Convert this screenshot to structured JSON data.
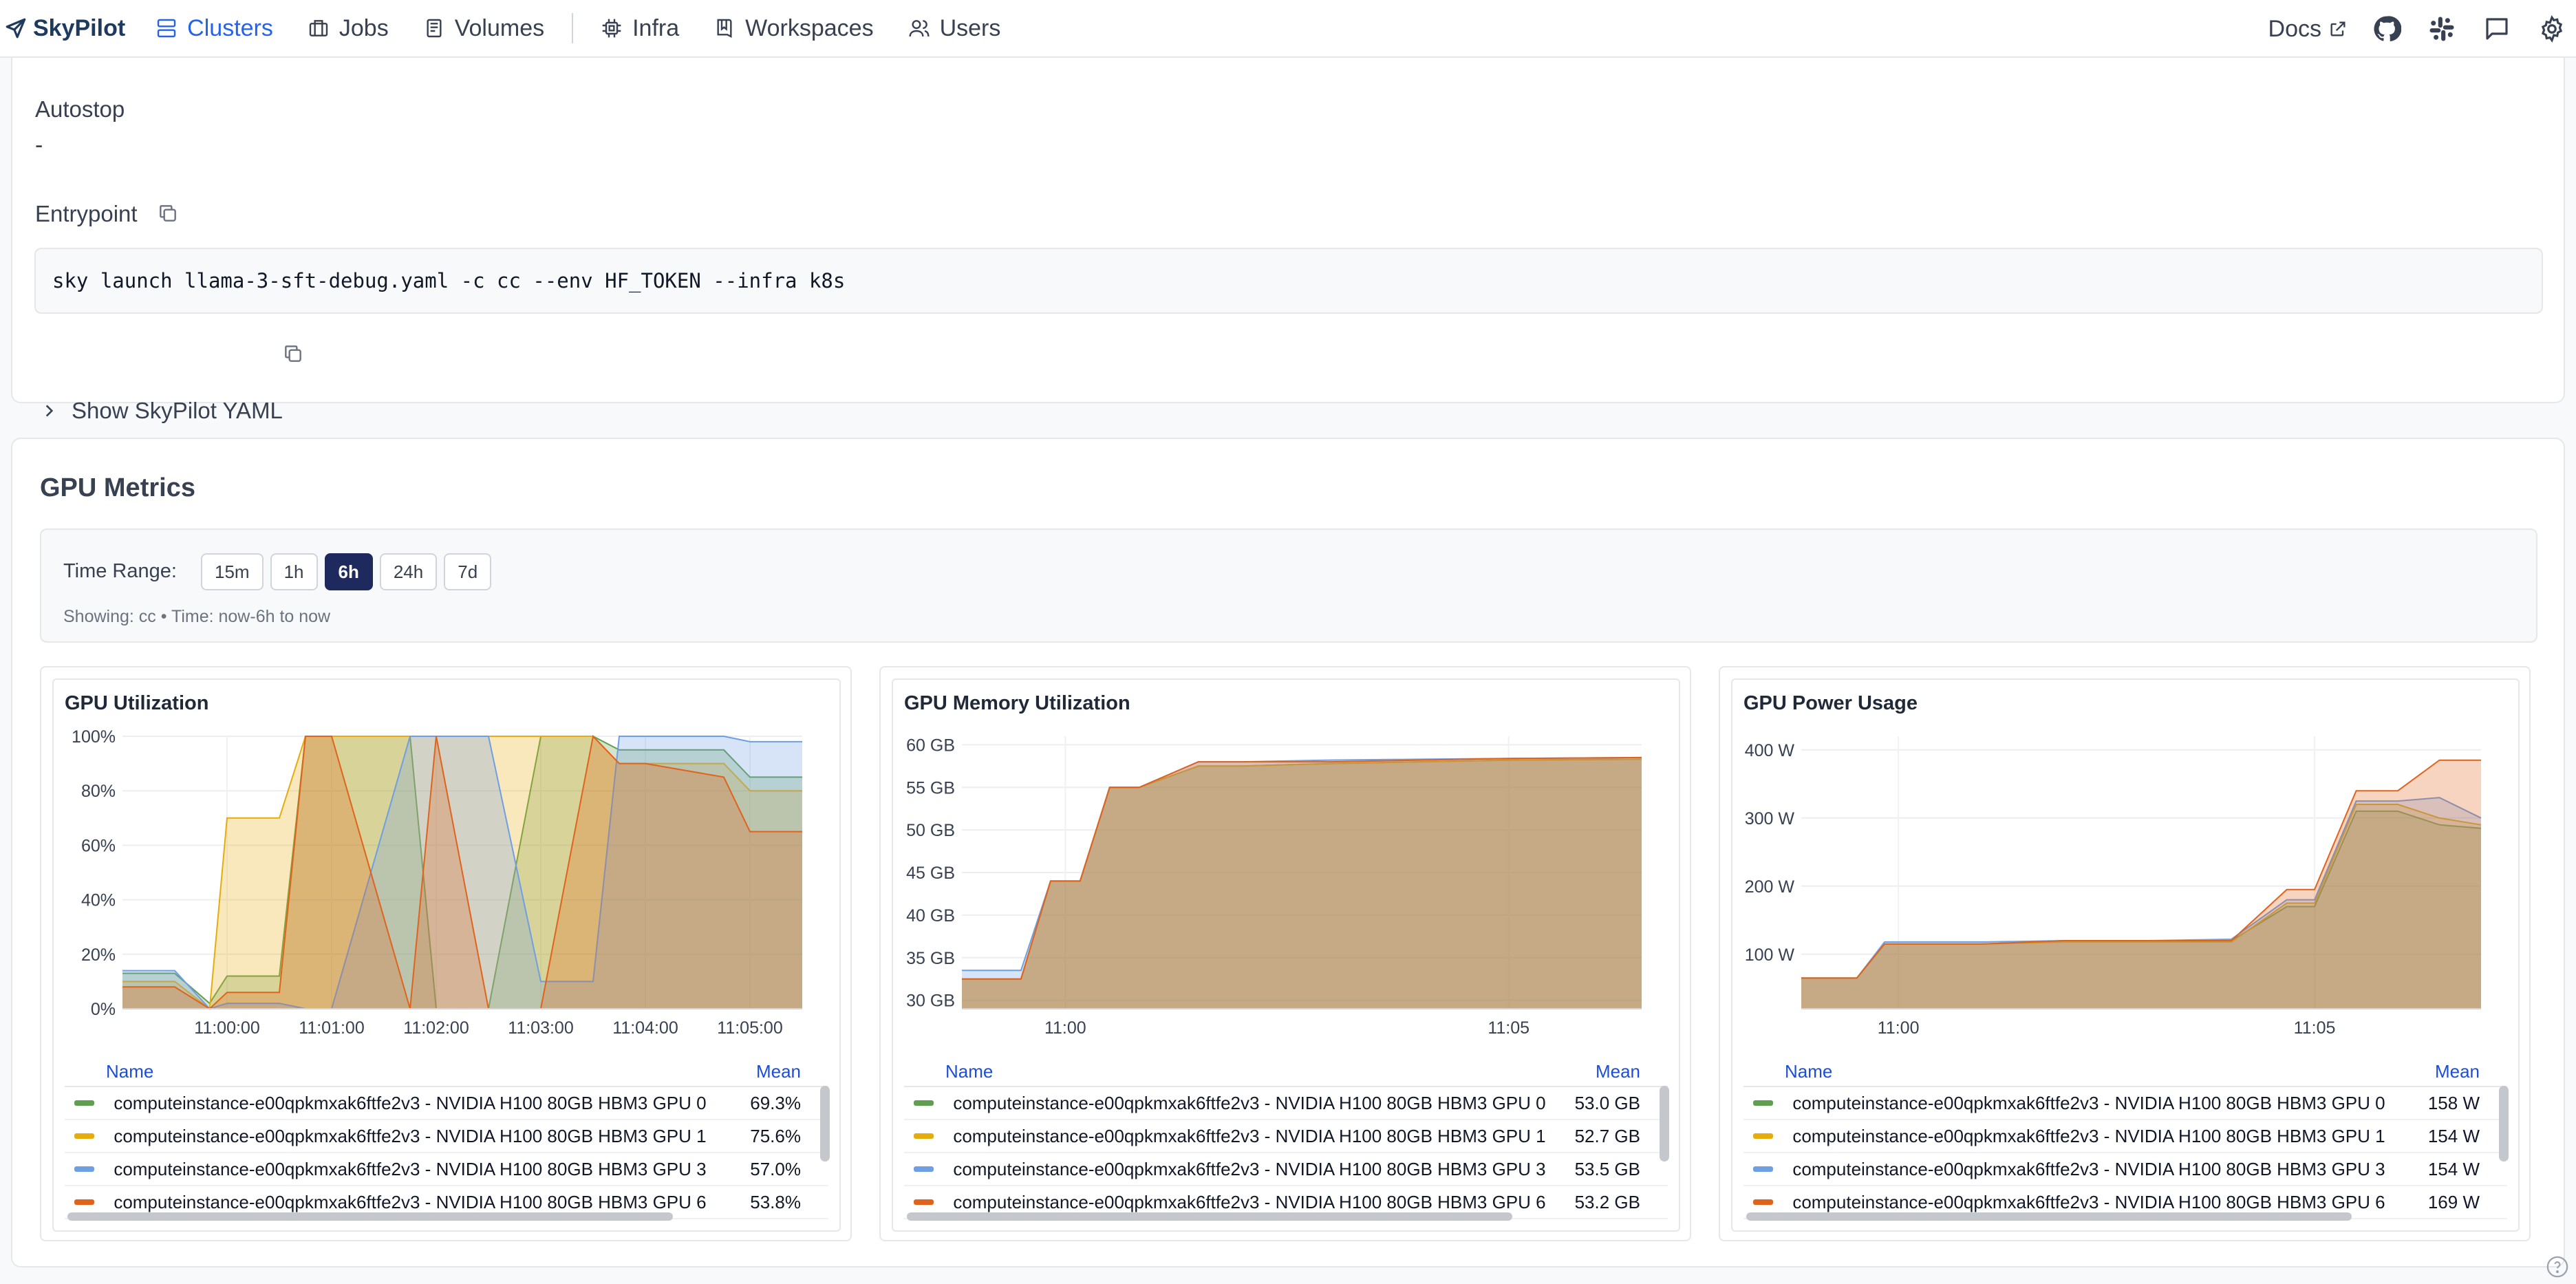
{
  "brand": {
    "name": "SkyPilot"
  },
  "nav": [
    {
      "label": "Clusters",
      "icon": "clusters-icon",
      "active": true
    },
    {
      "label": "Jobs",
      "icon": "jobs-icon",
      "active": false
    },
    {
      "label": "Volumes",
      "icon": "volumes-icon",
      "active": false
    },
    {
      "label": "Infra",
      "icon": "infra-icon",
      "active": false
    },
    {
      "label": "Workspaces",
      "icon": "workspaces-icon",
      "active": false
    },
    {
      "label": "Users",
      "icon": "users-icon",
      "active": false
    }
  ],
  "header": {
    "docs_label": "Docs"
  },
  "details": {
    "autostop_label": "Autostop",
    "autostop_value": "-",
    "entrypoint_label": "Entrypoint",
    "entrypoint_command": "sky launch llama-3-sft-debug.yaml -c cc --env HF_TOKEN --infra k8s",
    "yaml_toggle_label": "Show SkyPilot YAML"
  },
  "gpu_metrics": {
    "title": "GPU Metrics",
    "time_range_label": "Time Range:",
    "ranges": [
      "15m",
      "1h",
      "6h",
      "24h",
      "7d"
    ],
    "selected_range": "6h",
    "showing_text": "Showing: cc • Time: now-6h to now"
  },
  "legend_header": {
    "name": "Name",
    "mean": "Mean"
  },
  "series_colors": [
    "#629e51",
    "#e5ac0e",
    "#6e9fe2",
    "#e0631c"
  ],
  "series_names": [
    "computeinstance-e00qpkmxak6ftfe2v3 - NVIDIA H100 80GB HBM3 GPU 0",
    "computeinstance-e00qpkmxak6ftfe2v3 - NVIDIA H100 80GB HBM3 GPU 1",
    "computeinstance-e00qpkmxak6ftfe2v3 - NVIDIA H100 80GB HBM3 GPU 3",
    "computeinstance-e00qpkmxak6ftfe2v3 - NVIDIA H100 80GB HBM3 GPU 6"
  ],
  "chart_data": [
    {
      "type": "area",
      "title": "GPU Utilization",
      "x": [
        "10:59:00",
        "10:59:30",
        "10:59:50",
        "11:00:00",
        "11:00:30",
        "11:00:45",
        "11:01:00",
        "11:01:45",
        "11:02:00",
        "11:02:30",
        "11:03:00",
        "11:03:30",
        "11:03:45",
        "11:04:00",
        "11:04:45",
        "11:05:00",
        "11:05:30"
      ],
      "xticks": [
        "11:00:00",
        "11:01:00",
        "11:02:00",
        "11:03:00",
        "11:04:00",
        "11:05:00"
      ],
      "yticks": [
        "0%",
        "20%",
        "40%",
        "60%",
        "80%",
        "100%"
      ],
      "ylim": [
        0,
        100
      ],
      "series": [
        {
          "name": "computeinstance-e00qpkmxak6ftfe2v3 - NVIDIA H100 80GB HBM3 GPU 0",
          "mean": "69.3%",
          "values": [
            13,
            13,
            2,
            12,
            12,
            100,
            100,
            100,
            0,
            0,
            100,
            100,
            95,
            95,
            95,
            85,
            85
          ]
        },
        {
          "name": "computeinstance-e00qpkmxak6ftfe2v3 - NVIDIA H100 80GB HBM3 GPU 1",
          "mean": "75.6%",
          "values": [
            10,
            10,
            0,
            70,
            70,
            100,
            100,
            100,
            100,
            100,
            100,
            100,
            90,
            90,
            90,
            80,
            80
          ]
        },
        {
          "name": "computeinstance-e00qpkmxak6ftfe2v3 - NVIDIA H100 80GB HBM3 GPU 3",
          "mean": "57.0%",
          "values": [
            14,
            14,
            0,
            2,
            2,
            0,
            0,
            100,
            100,
            100,
            10,
            10,
            100,
            100,
            100,
            98,
            98
          ]
        },
        {
          "name": "computeinstance-e00qpkmxak6ftfe2v3 - NVIDIA H100 80GB HBM3 GPU 6",
          "mean": "53.8%",
          "values": [
            8,
            8,
            0,
            6,
            6,
            100,
            100,
            0,
            100,
            0,
            0,
            100,
            90,
            90,
            85,
            65,
            65
          ]
        }
      ]
    },
    {
      "type": "area",
      "title": "GPU Memory Utilization",
      "x": [
        "10:58:50",
        "10:59:30",
        "10:59:50",
        "11:00:10",
        "11:00:30",
        "11:00:50",
        "11:01:30",
        "11:02:00",
        "11:03:00",
        "11:04:00",
        "11:05:00",
        "11:06:30"
      ],
      "xticks": [
        "11:00",
        "11:05"
      ],
      "yticks": [
        "30 GB",
        "35 GB",
        "40 GB",
        "45 GB",
        "50 GB",
        "55 GB",
        "60 GB"
      ],
      "ylim": [
        29,
        61
      ],
      "series": [
        {
          "name": "computeinstance-e00qpkmxak6ftfe2v3 - NVIDIA H100 80GB HBM3 GPU 0",
          "mean": "53.0 GB",
          "values": [
            32.5,
            32.5,
            44,
            44,
            55,
            55,
            57.5,
            57.5,
            57.8,
            58,
            58.2,
            58.3
          ]
        },
        {
          "name": "computeinstance-e00qpkmxak6ftfe2v3 - NVIDIA H100 80GB HBM3 GPU 1",
          "mean": "52.7 GB",
          "values": [
            32.5,
            32.5,
            44,
            44,
            55,
            55,
            57.5,
            57.5,
            57.8,
            58,
            58.2,
            58.3
          ]
        },
        {
          "name": "computeinstance-e00qpkmxak6ftfe2v3 - NVIDIA H100 80GB HBM3 GPU 3",
          "mean": "53.5 GB",
          "values": [
            33.5,
            33.5,
            44,
            44,
            55,
            55,
            58,
            58,
            58.2,
            58.3,
            58.4,
            58.5
          ]
        },
        {
          "name": "computeinstance-e00qpkmxak6ftfe2v3 - NVIDIA H100 80GB HBM3 GPU 6",
          "mean": "53.2 GB",
          "values": [
            32.5,
            32.5,
            44,
            44,
            55,
            55,
            58,
            58,
            58,
            58.2,
            58.4,
            58.5
          ]
        }
      ]
    },
    {
      "type": "area",
      "title": "GPU Power Usage",
      "x": [
        "10:58:50",
        "10:59:30",
        "10:59:50",
        "11:01:00",
        "11:02:00",
        "11:03:00",
        "11:04:00",
        "11:04:40",
        "11:05:00",
        "11:05:30",
        "11:06:00",
        "11:06:30",
        "11:07:00"
      ],
      "xticks": [
        "11:00",
        "11:05"
      ],
      "yticks": [
        "100 W",
        "200 W",
        "300 W",
        "400 W"
      ],
      "ylim": [
        20,
        420
      ],
      "series": [
        {
          "name": "computeinstance-e00qpkmxak6ftfe2v3 - NVIDIA H100 80GB HBM3 GPU 0",
          "mean": "158 W",
          "values": [
            65,
            65,
            115,
            115,
            120,
            120,
            120,
            170,
            170,
            310,
            310,
            290,
            285
          ]
        },
        {
          "name": "computeinstance-e00qpkmxak6ftfe2v3 - NVIDIA H100 80GB HBM3 GPU 1",
          "mean": "154 W",
          "values": [
            65,
            65,
            115,
            115,
            118,
            118,
            118,
            175,
            175,
            320,
            320,
            300,
            290
          ]
        },
        {
          "name": "computeinstance-e00qpkmxak6ftfe2v3 - NVIDIA H100 80GB HBM3 GPU 3",
          "mean": "154 W",
          "values": [
            65,
            65,
            118,
            118,
            120,
            120,
            122,
            180,
            180,
            325,
            325,
            330,
            300
          ]
        },
        {
          "name": "computeinstance-e00qpkmxak6ftfe2v3 - NVIDIA H100 80GB HBM3 GPU 6",
          "mean": "169 W",
          "values": [
            65,
            65,
            115,
            115,
            120,
            120,
            120,
            195,
            195,
            340,
            340,
            385,
            385
          ]
        }
      ]
    }
  ]
}
